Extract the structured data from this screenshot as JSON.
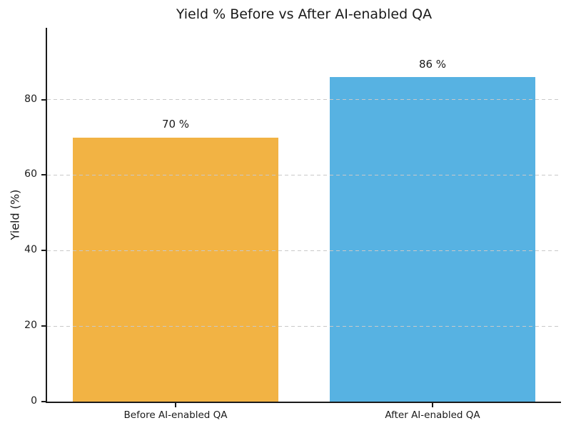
{
  "figure": {
    "background": "#FFFFFF"
  },
  "chart_data": {
    "type": "bar",
    "title": "Yield % Before vs After AI-enabled QA",
    "xlabel": "",
    "ylabel": "Yield (%)",
    "categories": [
      "Before AI-enabled QA",
      "After AI-enabled QA"
    ],
    "values": [
      70,
      86
    ],
    "bar_labels": [
      "70 %",
      "86 %"
    ],
    "bar_colors": [
      "#F2B344",
      "#57B2E2"
    ],
    "yticks": [
      0,
      20,
      40,
      60,
      80
    ],
    "ytick_labels": [
      "0",
      "20",
      "40",
      "60",
      "80"
    ],
    "ylim": [
      0,
      99
    ],
    "bar_width_fraction": 0.4,
    "grid": "horizontal-dashed-over-bars",
    "legend": "none"
  },
  "colors": {
    "axis": "#1A1A1A",
    "text": "#1A1A1A",
    "grid": "#C9C9C9",
    "background": "#FFFFFF"
  }
}
